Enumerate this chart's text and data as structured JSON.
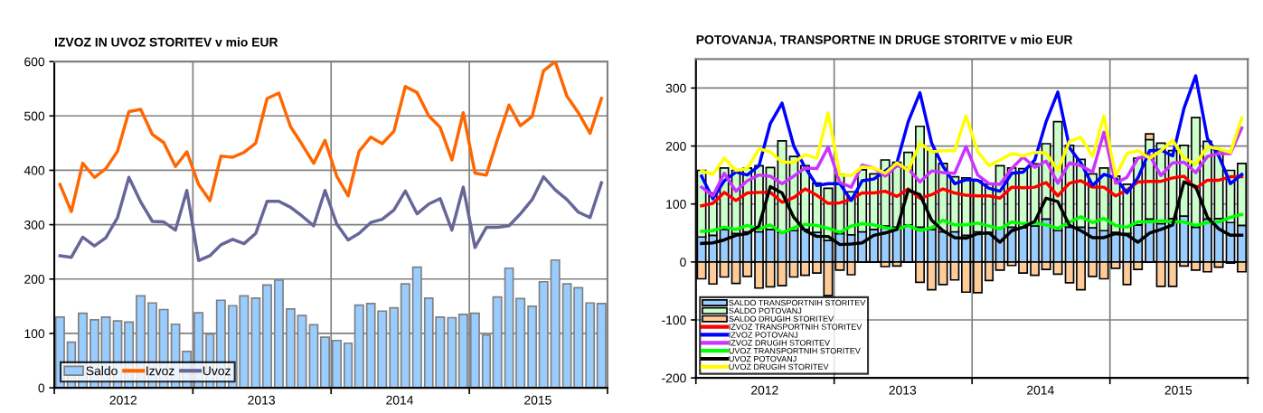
{
  "chart_data": [
    {
      "type": "bar",
      "title": "IZVOZ IN UVOZ STORITEV v mio EUR",
      "x": [
        "2012-01-16",
        "2012-02-15",
        "2012-03-16",
        "2012-04-16",
        "2012-05-16",
        "2012-06-16",
        "2012-07-16",
        "2012-08-16",
        "2012-09-16",
        "2012-10-16",
        "2012-11-16",
        "2012-12-16",
        "2013-01-16",
        "2013-02-15",
        "2013-03-16",
        "2013-04-16",
        "2013-05-16",
        "2013-06-16",
        "2013-07-16",
        "2013-08-16",
        "2013-09-16",
        "2013-10-16",
        "2013-11-16",
        "2013-12-16",
        "2014-01-16",
        "2014-02-15",
        "2014-03-16",
        "2014-04-16",
        "2014-05-16",
        "2014-06-16",
        "2014-07-16",
        "2014-08-16",
        "2014-09-16",
        "2014-10-16",
        "2014-11-16",
        "2014-12-16",
        "2015-01-16",
        "2015-02-15",
        "2015-03-16",
        "2015-04-16",
        "2015-05-16",
        "2015-06-16",
        "2015-07-16",
        "2015-08-16",
        "2015-09-16",
        "2015-10-16",
        "2015-11-16",
        "2015-12-16"
      ],
      "series": [
        {
          "name": "Saldo",
          "color": "#99ccff",
          "values": [
            130,
            84,
            137,
            125,
            130,
            123,
            121,
            169,
            156,
            144,
            117,
            67,
            138,
            99,
            161,
            151,
            169,
            165,
            189,
            198,
            145,
            133,
            116,
            93,
            87,
            82,
            152,
            155,
            141,
            147,
            191,
            222,
            165,
            130,
            129,
            135,
            137,
            97,
            167,
            220,
            164,
            150,
            195,
            235,
            191,
            184,
            156,
            155
          ]
        },
        {
          "name": "Izvoz",
          "type": "line",
          "color": "#ff6600",
          "values": [
            374,
            324,
            413,
            387,
            403,
            435,
            508,
            512,
            466,
            451,
            407,
            434,
            374,
            344,
            426,
            424,
            433,
            450,
            532,
            542,
            480,
            448,
            413,
            455,
            389,
            353,
            435,
            461,
            449,
            472,
            554,
            543,
            500,
            479,
            419,
            506,
            395,
            391,
            456,
            520,
            482,
            499,
            583,
            600,
            536,
            506,
            468,
            532
          ]
        },
        {
          "name": "Uvoz",
          "type": "line",
          "color": "#666699",
          "values": [
            243,
            240,
            277,
            261,
            276,
            313,
            387,
            342,
            306,
            305,
            290,
            363,
            234,
            243,
            263,
            273,
            265,
            284,
            343,
            343,
            332,
            316,
            298,
            363,
            301,
            272,
            284,
            304,
            310,
            327,
            362,
            320,
            338,
            348,
            290,
            369,
            258,
            295,
            295,
            298,
            320,
            346,
            388,
            364,
            346,
            323,
            313,
            377
          ]
        }
      ],
      "xlim": [
        "2012-01",
        "2016-01"
      ],
      "xticks": [
        {
          "value": "2012-01",
          "label": null
        },
        {
          "value": "2012-07",
          "label": "2012"
        },
        {
          "value": "2013-01",
          "label": null
        },
        {
          "value": "2013-07",
          "label": "2013"
        },
        {
          "value": "2014-01",
          "label": null
        },
        {
          "value": "2014-07",
          "label": "2014"
        },
        {
          "value": "2015-01",
          "label": null
        },
        {
          "value": "2015-07",
          "label": "2015"
        },
        {
          "value": "2016-01",
          "label": null
        }
      ],
      "ylim": [
        0,
        600
      ],
      "yticks": [
        0,
        100,
        200,
        300,
        400,
        500,
        600
      ],
      "grid": true,
      "legend": "lower left",
      "marker": "none",
      "line_style": "solid"
    },
    {
      "type": "bar",
      "title": "POTOVANJA, TRANSPORTNE IN DRUGE STORITVE v mio EUR",
      "stacked": true,
      "x": [
        "2012-01-16",
        "2012-02-15",
        "2012-03-16",
        "2012-04-16",
        "2012-05-16",
        "2012-06-16",
        "2012-07-16",
        "2012-08-16",
        "2012-09-16",
        "2012-10-16",
        "2012-11-16",
        "2012-12-16",
        "2013-01-16",
        "2013-02-15",
        "2013-03-16",
        "2013-04-16",
        "2013-05-16",
        "2013-06-16",
        "2013-07-16",
        "2013-08-16",
        "2013-09-16",
        "2013-10-16",
        "2013-11-16",
        "2013-12-16",
        "2014-01-16",
        "2014-02-15",
        "2014-03-16",
        "2014-04-16",
        "2014-05-16",
        "2014-06-16",
        "2014-07-16",
        "2014-08-16",
        "2014-09-16",
        "2014-10-16",
        "2014-11-16",
        "2014-12-16",
        "2015-01-16",
        "2015-02-15",
        "2015-03-16",
        "2015-04-16",
        "2015-05-16",
        "2015-06-16",
        "2015-07-16",
        "2015-08-16",
        "2015-09-16",
        "2015-10-16",
        "2015-11-16",
        "2015-12-16"
      ],
      "series": [
        {
          "name": "SALDO TRANSPORTNIH STORITEV",
          "color": "#99ccff",
          "values": [
            43,
            46,
            56,
            49,
            52,
            52,
            56,
            51,
            54,
            56,
            51,
            37,
            49,
            47,
            52,
            56,
            62,
            60,
            64,
            60,
            56,
            52,
            52,
            46,
            52,
            51,
            59,
            60,
            59,
            62,
            74,
            54,
            60,
            60,
            59,
            54,
            51,
            49,
            64,
            74,
            66,
            75,
            79,
            60,
            74,
            75,
            68,
            63
          ]
        },
        {
          "name": "SALDO POTOVANJ",
          "color": "#ccffcc",
          "values": [
            115,
            73,
            106,
            109,
            110,
            114,
            107,
            158,
            128,
            110,
            85,
            90,
            102,
            74,
            107,
            96,
            114,
            112,
            125,
            174,
            136,
            118,
            95,
            99,
            88,
            83,
            107,
            102,
            102,
            107,
            130,
            188,
            141,
            117,
            93,
            108,
            97,
            85,
            115,
            137,
            139,
            117,
            122,
            189,
            134,
            117,
            90,
            107
          ]
        },
        {
          "name": "SALDO DRUGIH STORITEV",
          "color": "#ffcc99",
          "values": [
            -29,
            -38,
            -26,
            -37,
            -25,
            -45,
            -43,
            -41,
            -26,
            -23,
            -19,
            -58,
            -14,
            -22,
            null,
            null,
            -8,
            -7,
            null,
            -35,
            -48,
            -39,
            -31,
            -52,
            -53,
            -32,
            -14,
            -6,
            -19,
            -23,
            -13,
            -21,
            -36,
            -48,
            -25,
            -29,
            -11,
            -39,
            -13,
            10,
            -42,
            -42,
            -7,
            -14,
            -17,
            -9,
            -2,
            -17
          ]
        },
        {
          "name": "IZVOZ TRANSPORTNIH STORITEV",
          "type": "line",
          "color": "#ff0000",
          "values": [
            97,
            101,
            120,
            106,
            119,
            120,
            120,
            103,
            111,
            126,
            115,
            101,
            102,
            108,
            119,
            119,
            122,
            113,
            126,
            110,
            116,
            126,
            119,
            115,
            114,
            114,
            110,
            129,
            128,
            129,
            137,
            114,
            136,
            140,
            129,
            129,
            114,
            124,
            138,
            139,
            139,
            145,
            148,
            127,
            141,
            141,
            147,
            147
          ]
        },
        {
          "name": "IZVOZ POTOVANJ",
          "type": "line",
          "color": "#0000ff",
          "values": [
            148,
            109,
            140,
            155,
            150,
            166,
            239,
            274,
            200,
            163,
            132,
            135,
            135,
            106,
            140,
            143,
            157,
            171,
            242,
            292,
            205,
            165,
            135,
            142,
            141,
            127,
            122,
            153,
            155,
            176,
            242,
            293,
            197,
            171,
            132,
            151,
            145,
            119,
            145,
            192,
            193,
            183,
            265,
            321,
            213,
            183,
            135,
            151
          ]
        },
        {
          "name": "IZVOZ DRUGIH STORITEV",
          "type": "line",
          "color": "#cc33ff",
          "values": [
            129,
            114,
            153,
            122,
            140,
            150,
            148,
            135,
            148,
            162,
            161,
            198,
            137,
            129,
            167,
            162,
            148,
            166,
            161,
            138,
            157,
            154,
            153,
            199,
            150,
            135,
            134,
            161,
            181,
            163,
            174,
            136,
            171,
            166,
            155,
            224,
            136,
            146,
            179,
            184,
            149,
            171,
            172,
            154,
            182,
            187,
            187,
            231
          ]
        },
        {
          "name": "UVOZ TRANSPORTNIH STORITEV",
          "type": "line",
          "color": "#00ff00",
          "values": [
            53,
            54,
            60,
            56,
            63,
            57,
            64,
            50,
            59,
            65,
            63,
            58,
            51,
            62,
            66,
            64,
            59,
            56,
            63,
            54,
            59,
            72,
            64,
            64,
            67,
            62,
            57,
            69,
            66,
            67,
            64,
            58,
            69,
            78,
            68,
            75,
            63,
            60,
            69,
            69,
            71,
            69,
            69,
            63,
            68,
            69,
            77,
            82
          ]
        },
        {
          "name": "UVOZ POTOVANJ",
          "type": "line",
          "color": "#000000",
          "values": [
            32,
            33,
            38,
            46,
            49,
            62,
            130,
            119,
            77,
            54,
            44,
            44,
            30,
            31,
            33,
            46,
            50,
            56,
            124,
            116,
            72,
            54,
            42,
            41,
            49,
            50,
            34,
            54,
            60,
            70,
            110,
            104,
            63,
            54,
            42,
            42,
            49,
            47,
            34,
            50,
            56,
            64,
            138,
            130,
            77,
            57,
            46,
            46
          ]
        },
        {
          "name": "UVOZ DRUGIH STORITEV",
          "type": "line",
          "color": "#ffff00",
          "values": [
            157,
            151,
            179,
            158,
            161,
            195,
            190,
            172,
            172,
            185,
            179,
            257,
            150,
            149,
            164,
            162,
            153,
            171,
            158,
            205,
            190,
            192,
            192,
            252,
            190,
            166,
            176,
            187,
            183,
            189,
            188,
            158,
            208,
            215,
            182,
            252,
            148,
            187,
            192,
            179,
            192,
            210,
            179,
            169,
            199,
            195,
            189,
            248
          ]
        }
      ],
      "xlim": [
        "2012-01",
        "2016-01"
      ],
      "xticks": [
        {
          "value": "2012-01",
          "label": null
        },
        {
          "value": "2012-07",
          "label": "2012"
        },
        {
          "value": "2013-01",
          "label": null
        },
        {
          "value": "2013-07",
          "label": "2013"
        },
        {
          "value": "2014-01",
          "label": null
        },
        {
          "value": "2014-07",
          "label": "2014"
        },
        {
          "value": "2015-01",
          "label": null
        },
        {
          "value": "2015-07",
          "label": "2015"
        },
        {
          "value": "2016-01",
          "label": null
        }
      ],
      "ylim": [
        -200,
        350
      ],
      "yticks": [
        -200,
        -100,
        0,
        100,
        200,
        300
      ],
      "grid": true,
      "legend": "lower left",
      "marker": "none",
      "line_style": "solid"
    }
  ]
}
